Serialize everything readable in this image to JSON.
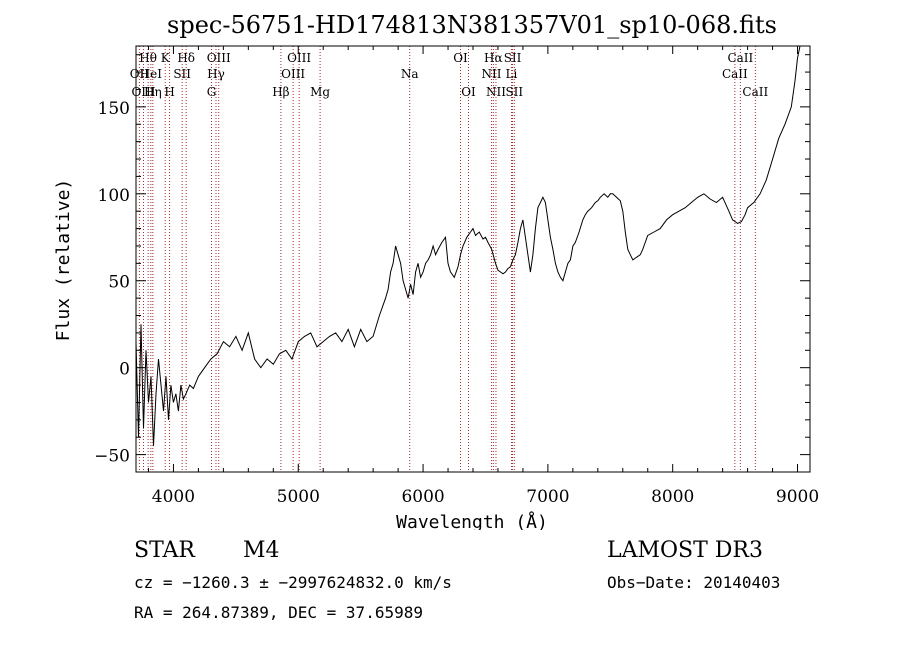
{
  "chart_data": {
    "type": "line",
    "title": "spec-56751-HD174813N381357V01_sp10-068.fits",
    "xlabel": "Wavelength (Å)",
    "ylabel": "Flux (relative)",
    "xlim": [
      3700,
      9100
    ],
    "ylim": [
      -60,
      185
    ],
    "xticks": [
      4000,
      5000,
      6000,
      7000,
      8000,
      9000
    ],
    "xtick_labels": [
      "4000",
      "5000",
      "6000",
      "7000",
      "8000",
      "9000"
    ],
    "yticks": [
      -50,
      0,
      50,
      100,
      150
    ],
    "ytick_labels": [
      "−50",
      "0",
      "50",
      "100",
      "150"
    ],
    "grid": false,
    "series": [
      {
        "name": "flux",
        "x": [
          3700,
          3720,
          3740,
          3760,
          3780,
          3800,
          3820,
          3840,
          3860,
          3880,
          3900,
          3920,
          3940,
          3960,
          3980,
          4000,
          4020,
          4040,
          4060,
          4080,
          4100,
          4130,
          4160,
          4200,
          4250,
          4300,
          4350,
          4400,
          4450,
          4500,
          4550,
          4600,
          4650,
          4700,
          4750,
          4800,
          4850,
          4900,
          4950,
          5000,
          5050,
          5100,
          5150,
          5200,
          5250,
          5300,
          5350,
          5400,
          5450,
          5500,
          5550,
          5600,
          5650,
          5700,
          5720,
          5740,
          5760,
          5780,
          5800,
          5820,
          5840,
          5860,
          5880,
          5900,
          5920,
          5940,
          5960,
          5980,
          6000,
          6020,
          6040,
          6060,
          6080,
          6100,
          6120,
          6150,
          6180,
          6200,
          6220,
          6250,
          6280,
          6300,
          6320,
          6350,
          6380,
          6400,
          6420,
          6450,
          6480,
          6500,
          6520,
          6550,
          6580,
          6600,
          6620,
          6640,
          6660,
          6680,
          6700,
          6720,
          6740,
          6760,
          6780,
          6800,
          6820,
          6840,
          6860,
          6880,
          6900,
          6920,
          6940,
          6960,
          6980,
          7000,
          7020,
          7040,
          7060,
          7080,
          7100,
          7120,
          7140,
          7160,
          7180,
          7200,
          7220,
          7250,
          7280,
          7300,
          7320,
          7350,
          7380,
          7400,
          7420,
          7450,
          7480,
          7500,
          7520,
          7550,
          7580,
          7600,
          7620,
          7640,
          7660,
          7680,
          7700,
          7720,
          7740,
          7760,
          7780,
          7800,
          7850,
          7900,
          7950,
          8000,
          8050,
          8100,
          8150,
          8200,
          8250,
          8300,
          8350,
          8400,
          8450,
          8480,
          8500,
          8520,
          8550,
          8580,
          8600,
          8650,
          8700,
          8750,
          8800,
          8850,
          8900,
          8950,
          8980,
          9000,
          9020,
          9030
        ],
        "y": [
          15,
          -40,
          25,
          -35,
          10,
          -20,
          -5,
          -45,
          -15,
          5,
          -10,
          -25,
          -5,
          -30,
          -10,
          -20,
          -15,
          -25,
          -10,
          -18,
          -15,
          -10,
          -12,
          -5,
          0,
          5,
          8,
          15,
          12,
          18,
          10,
          20,
          5,
          0,
          5,
          2,
          8,
          10,
          5,
          15,
          18,
          20,
          12,
          15,
          18,
          20,
          15,
          22,
          12,
          22,
          15,
          18,
          30,
          40,
          45,
          55,
          60,
          70,
          65,
          60,
          50,
          45,
          40,
          48,
          42,
          55,
          60,
          52,
          55,
          60,
          62,
          65,
          70,
          65,
          68,
          72,
          75,
          60,
          55,
          52,
          58,
          65,
          70,
          75,
          78,
          80,
          76,
          78,
          74,
          75,
          72,
          68,
          60,
          56,
          55,
          54,
          55,
          57,
          58,
          62,
          65,
          72,
          80,
          85,
          75,
          65,
          55,
          65,
          80,
          92,
          95,
          98,
          95,
          85,
          75,
          68,
          60,
          55,
          52,
          50,
          55,
          60,
          62,
          70,
          72,
          78,
          85,
          88,
          90,
          92,
          95,
          96,
          98,
          100,
          98,
          100,
          100,
          98,
          96,
          90,
          78,
          68,
          65,
          62,
          63,
          64,
          65,
          68,
          72,
          76,
          78,
          80,
          85,
          88,
          90,
          92,
          95,
          98,
          100,
          97,
          95,
          98,
          90,
          85,
          84,
          83,
          84,
          88,
          92,
          95,
          100,
          108,
          120,
          132,
          140,
          150,
          165,
          178,
          185,
          185
        ]
      }
    ],
    "spectral_lines": [
      {
        "label": "Hθ",
        "x": 3797,
        "row": 1
      },
      {
        "label": "OII",
        "x": 3727,
        "row": 2
      },
      {
        "label": "OIII",
        "x": 3760,
        "row": 3
      },
      {
        "label": "HeI",
        "x": 3819,
        "row": 2
      },
      {
        "label": "Hη",
        "x": 3835,
        "row": 3
      },
      {
        "label": "K",
        "x": 3934,
        "row": 1
      },
      {
        "label": "SII",
        "x": 4070,
        "row": 2
      },
      {
        "label": "H",
        "x": 3969,
        "row": 3
      },
      {
        "label": "Hδ",
        "x": 4102,
        "row": 1
      },
      {
        "label": "OIII",
        "x": 4363,
        "row": 1
      },
      {
        "label": "Hγ",
        "x": 4341,
        "row": 2
      },
      {
        "label": "G",
        "x": 4305,
        "row": 3
      },
      {
        "label": "Hβ",
        "x": 4861,
        "row": 3
      },
      {
        "label": "OIII",
        "x": 5007,
        "row": 1
      },
      {
        "label": "OIII",
        "x": 4959,
        "row": 2
      },
      {
        "label": "Mg",
        "x": 5175,
        "row": 3
      },
      {
        "label": "Na",
        "x": 5893,
        "row": 2
      },
      {
        "label": "OI",
        "x": 6300,
        "row": 1
      },
      {
        "label": "OI",
        "x": 6364,
        "row": 3
      },
      {
        "label": "Hα",
        "x": 6563,
        "row": 1
      },
      {
        "label": "NII",
        "x": 6548,
        "row": 2
      },
      {
        "label": "NII",
        "x": 6584,
        "row": 3
      },
      {
        "label": "SII",
        "x": 6717,
        "row": 1
      },
      {
        "label": "Li",
        "x": 6708,
        "row": 2
      },
      {
        "label": "SII",
        "x": 6731,
        "row": 3
      },
      {
        "label": "CaII",
        "x": 8542,
        "row": 1
      },
      {
        "label": "CaII",
        "x": 8498,
        "row": 2
      },
      {
        "label": "CaII",
        "x": 8662,
        "row": 3
      }
    ]
  },
  "info": {
    "class": "STAR",
    "subclass": "M4",
    "survey": "LAMOST DR3",
    "cz": "cz = −1260.3 ± −2997624832.0 km/s",
    "obs_date": "Obs−Date: 20140403",
    "radec": "RA = 264.87389, DEC =  37.65989"
  },
  "colors": {
    "line": "#000000",
    "marker": "#a52a2a"
  }
}
